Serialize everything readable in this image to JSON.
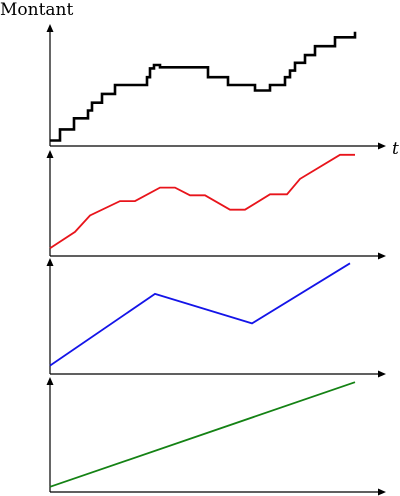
{
  "chart_data": [
    {
      "type": "line",
      "step": true,
      "ylabel": "Montant",
      "xlabel": "t",
      "color": "#000000",
      "x": [
        0,
        10,
        24,
        38,
        42,
        52,
        65,
        90,
        97,
        100,
        104,
        110,
        135,
        158,
        178,
        205,
        220,
        235,
        240,
        245,
        255,
        265,
        285,
        305
      ],
      "y": [
        5,
        15,
        25,
        32,
        39,
        47,
        55,
        55,
        62,
        70,
        73,
        71,
        71,
        62,
        55,
        50,
        55,
        62,
        68,
        75,
        82,
        90,
        98,
        103
      ]
    },
    {
      "type": "line",
      "step": false,
      "color": "#e8141b",
      "x": [
        0,
        25,
        40,
        70,
        85,
        110,
        125,
        140,
        155,
        180,
        195,
        220,
        237,
        250,
        290,
        305
      ],
      "y": [
        8,
        25,
        42,
        57,
        57,
        71,
        71,
        63,
        63,
        48,
        48,
        64,
        64,
        80,
        105,
        105
      ]
    },
    {
      "type": "line",
      "step": false,
      "color": "#1414e8",
      "x": [
        0,
        105,
        202,
        300
      ],
      "y": [
        8,
        76,
        48,
        105
      ]
    },
    {
      "type": "line",
      "step": false,
      "color": "#148214",
      "x": [
        0,
        305
      ],
      "y": [
        5,
        105
      ]
    }
  ]
}
